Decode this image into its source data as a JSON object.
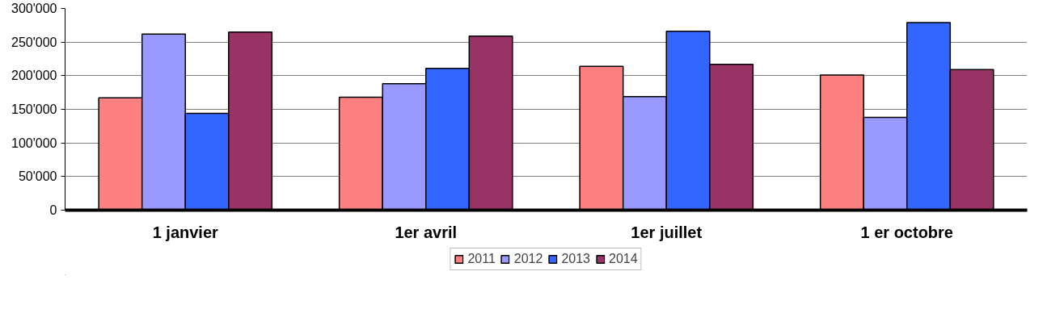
{
  "chart_data": {
    "type": "bar",
    "categories": [
      "1 janvier",
      "1er avril",
      "1er juillet",
      "1 er octobre"
    ],
    "series": [
      {
        "name": "2011",
        "color": "#ff8080",
        "values": [
          167000,
          168000,
          214000,
          201000
        ]
      },
      {
        "name": "2012",
        "color": "#9999ff",
        "values": [
          262000,
          188000,
          169000,
          138000
        ]
      },
      {
        "name": "2013",
        "color": "#3366ff",
        "values": [
          144000,
          211000,
          266000,
          279000
        ]
      },
      {
        "name": "2014",
        "color": "#993366",
        "values": [
          265000,
          259000,
          217000,
          209000
        ]
      }
    ],
    "ylim": [
      0,
      300000
    ],
    "yticks": [
      {
        "value": 0,
        "label": "0"
      },
      {
        "value": 50000,
        "label": "50'000"
      },
      {
        "value": 100000,
        "label": "100'000"
      },
      {
        "value": 150000,
        "label": "150'000"
      },
      {
        "value": 200000,
        "label": "200'000"
      },
      {
        "value": 250000,
        "label": "250'000"
      },
      {
        "value": 300000,
        "label": "300'000"
      }
    ],
    "grid": "y",
    "legend": "bottom"
  }
}
